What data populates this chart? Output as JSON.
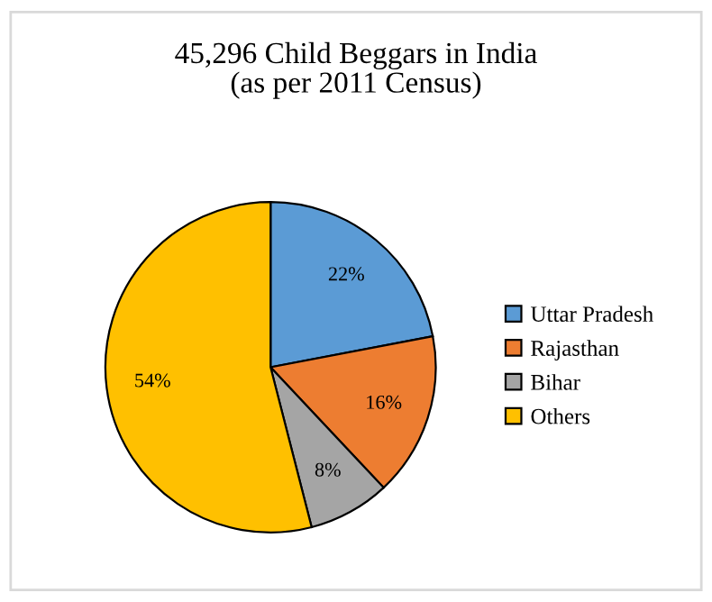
{
  "chart_data": {
    "type": "pie",
    "title": "45,296 Child Beggars in India\n(as per 2011 Census)",
    "categories": [
      "Uttar Pradesh",
      "Rajasthan",
      "Bihar",
      "Others"
    ],
    "values": [
      22,
      16,
      8,
      54
    ],
    "colors": [
      "#5b9bd5",
      "#ed7d31",
      "#a5a5a5",
      "#ffc000"
    ],
    "value_labels": [
      "22%",
      "16%",
      "8%",
      "54%"
    ],
    "legend": "right"
  }
}
